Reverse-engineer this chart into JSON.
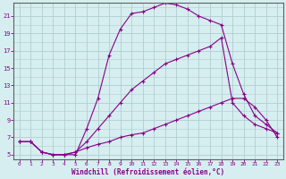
{
  "xlabel": "Windchill (Refroidissement éolien,°C)",
  "bg_color": "#d6eef0",
  "grid_color": "#b0cdd0",
  "line_color": "#880088",
  "xlim": [
    -0.5,
    23.5
  ],
  "ylim": [
    4.5,
    22.5
  ],
  "xticks": [
    0,
    1,
    2,
    3,
    4,
    5,
    6,
    7,
    8,
    9,
    10,
    11,
    12,
    13,
    14,
    15,
    16,
    17,
    18,
    19,
    20,
    21,
    22,
    23
  ],
  "yticks": [
    5,
    7,
    9,
    11,
    13,
    15,
    17,
    19,
    21
  ],
  "curve1_x": [
    0,
    1,
    2,
    3,
    4,
    5,
    6,
    7,
    8,
    9,
    10,
    11,
    12,
    13,
    14,
    15,
    16,
    17,
    18,
    19,
    20,
    21,
    22,
    23
  ],
  "curve1_y": [
    6.5,
    6.5,
    5.3,
    5.0,
    5.0,
    5.0,
    8.0,
    11.5,
    16.5,
    19.5,
    21.3,
    21.5,
    22.0,
    22.5,
    22.3,
    21.8,
    21.0,
    20.5,
    20.0,
    15.5,
    12.0,
    9.5,
    8.5,
    7.5
  ],
  "curve2_x": [
    0,
    1,
    2,
    3,
    4,
    5,
    6,
    7,
    8,
    9,
    10,
    11,
    12,
    13,
    14,
    15,
    16,
    17,
    18,
    19,
    20,
    21,
    22,
    23
  ],
  "curve2_y": [
    6.5,
    6.5,
    5.3,
    5.0,
    5.0,
    5.3,
    6.5,
    8.0,
    9.5,
    11.0,
    12.5,
    13.5,
    14.5,
    15.5,
    16.0,
    16.5,
    17.0,
    17.5,
    18.5,
    11.0,
    9.5,
    8.5,
    8.0,
    7.5
  ],
  "curve3_x": [
    0,
    1,
    2,
    3,
    4,
    5,
    6,
    7,
    8,
    9,
    10,
    11,
    12,
    13,
    14,
    15,
    16,
    17,
    18,
    19,
    20,
    21,
    22,
    23
  ],
  "curve3_y": [
    6.5,
    6.5,
    5.3,
    5.0,
    5.0,
    5.3,
    5.8,
    6.2,
    6.5,
    7.0,
    7.3,
    7.5,
    8.0,
    8.5,
    9.0,
    9.5,
    10.0,
    10.5,
    11.0,
    11.5,
    11.5,
    10.5,
    9.0,
    7.0
  ]
}
